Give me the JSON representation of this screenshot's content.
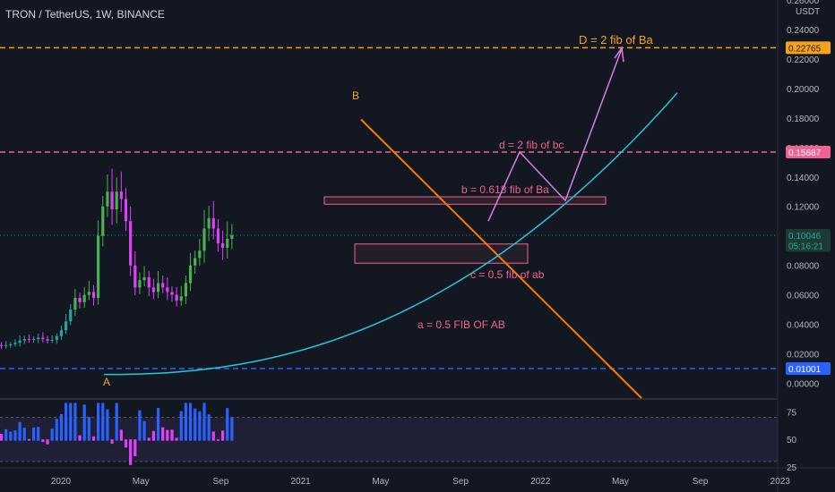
{
  "header": {
    "symbol_line": "TRON / TetherUS, 1W, BINANCE"
  },
  "colors": {
    "bg": "#131722",
    "up": "#26a69a",
    "up_bright": "#4caf50",
    "down": "#e040fb",
    "orange": "#f57c00",
    "fib_orange": "#f7a21b",
    "pink": "#f06292",
    "cyan": "#26c6da",
    "blue": "#2962ff",
    "axis_text": "#b2b5be"
  },
  "chart_data": [
    {
      "type": "candlestick",
      "title": "TRON / TetherUS, 1W, BINANCE",
      "price_axis": {
        "ylim": [
          -0.01,
          0.26
        ],
        "unit_label": "USDT",
        "ticks": [
          "0.26000",
          "0.24000",
          "0.22000",
          "0.20000",
          "0.18000",
          "0.16000",
          "0.14000",
          "0.12000",
          "0.10000",
          "0.08000",
          "0.06000",
          "0.04000",
          "0.02000",
          "0.00000"
        ]
      },
      "time_axis": {
        "ticks": [
          {
            "label": "2020",
            "month": 0
          },
          {
            "label": "May",
            "month": 4
          },
          {
            "label": "Sep",
            "month": 8
          },
          {
            "label": "2021",
            "month": 12
          },
          {
            "label": "May",
            "month": 16
          },
          {
            "label": "Sep",
            "month": 20
          },
          {
            "label": "2022",
            "month": 24
          },
          {
            "label": "May",
            "month": 28
          },
          {
            "label": "Sep",
            "month": 32
          },
          {
            "label": "2023",
            "month": 36
          }
        ]
      },
      "price_badges": [
        {
          "label": "0.22765",
          "value": 0.22765,
          "kind": "orange"
        },
        {
          "label": "0.15687",
          "value": 0.15687,
          "kind": "pink"
        },
        {
          "label": "0.10046",
          "value": 0.10046,
          "kind": "last"
        },
        {
          "label": "05:16:21",
          "value": 0.09346,
          "kind": "countdown"
        },
        {
          "label": "0.01001",
          "value": 0.01001,
          "kind": "blue"
        }
      ],
      "annotations": [
        {
          "text": "D = 2 fib of Ba",
          "color": "fib_orange"
        },
        {
          "text": "B",
          "color": "fib_orange"
        },
        {
          "text": "d = 2 fib of bc",
          "color": "pink"
        },
        {
          "text": "b = 0.618 fib of Ba",
          "color": "pink"
        },
        {
          "text": "c = 0.5 fib of ab",
          "color": "pink"
        },
        {
          "text": "a = 0.5 FIB OF AB",
          "color": "pink"
        },
        {
          "text": "A",
          "color": "fib_orange"
        }
      ],
      "close_series": [
        0.0135,
        0.014,
        0.0145,
        0.015,
        0.0155,
        0.0148,
        0.0145,
        0.015,
        0.0155,
        0.016,
        0.0165,
        0.0158,
        0.015,
        0.0148,
        0.015,
        0.0155,
        0.016,
        0.017,
        0.018,
        0.0165,
        0.015,
        0.014,
        0.012,
        0.01,
        0.0095,
        0.011,
        0.012,
        0.013,
        0.0135,
        0.014,
        0.0145,
        0.015,
        0.0155,
        0.016,
        0.0165,
        0.017,
        0.0175,
        0.018,
        0.0185,
        0.019,
        0.02,
        0.022,
        0.025,
        0.028,
        0.03,
        0.027,
        0.026,
        0.025,
        0.0255,
        0.026,
        0.027,
        0.0265,
        0.026,
        0.0255,
        0.026,
        0.0265,
        0.0275,
        0.029,
        0.03,
        0.0295,
        0.03,
        0.031,
        0.03,
        0.029,
        0.0295,
        0.032,
        0.036,
        0.042,
        0.05,
        0.058,
        0.055,
        0.06,
        0.062,
        0.058,
        0.1,
        0.12,
        0.13,
        0.118,
        0.13,
        0.125,
        0.11,
        0.08,
        0.065,
        0.07,
        0.072,
        0.065,
        0.062,
        0.068,
        0.065,
        0.062,
        0.06,
        0.056,
        0.059,
        0.068,
        0.08,
        0.085,
        0.09,
        0.105,
        0.112,
        0.105,
        0.095,
        0.092,
        0.098,
        0.1005
      ]
    },
    {
      "type": "line",
      "title": "",
      "ylim": [
        25,
        85
      ],
      "ticks": [
        "75",
        "50",
        "25"
      ]
    }
  ]
}
